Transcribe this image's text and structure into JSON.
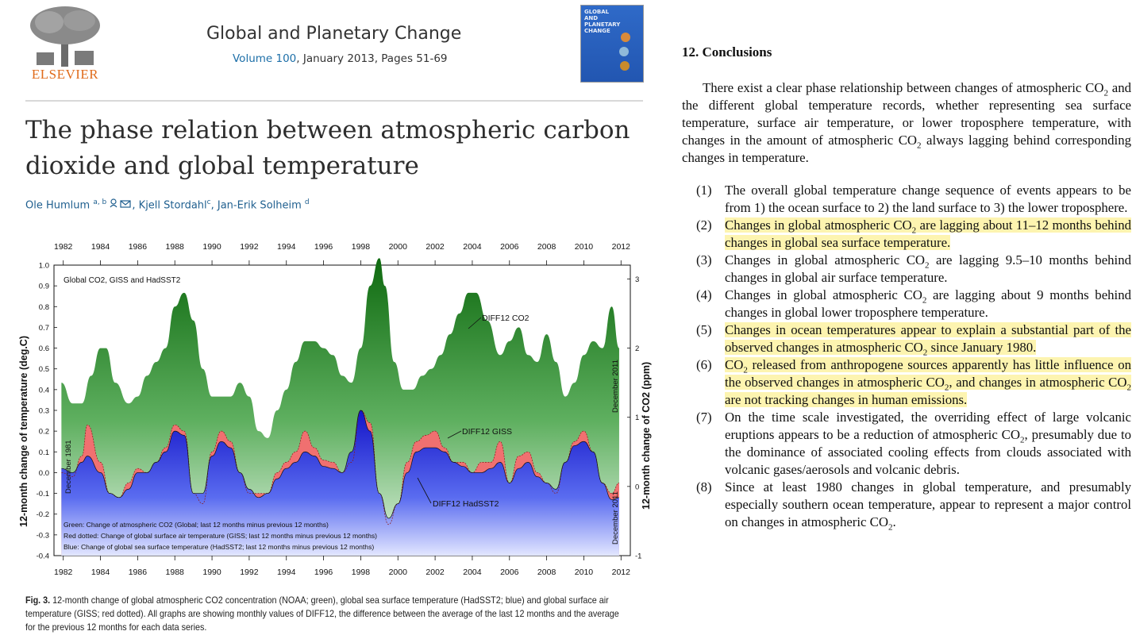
{
  "header": {
    "publisher": "ELSEVIER",
    "journal_name": "Global and Planetary Change",
    "volume_label": "Volume 100",
    "issue_rest": ", January 2013, Pages 51-69",
    "cover_text": "GLOBAL AND PLANETARY CHANGE"
  },
  "article": {
    "title": "The phase relation between atmospheric carbon dioxide and global temperature",
    "authors": [
      {
        "name": "Ole Humlum",
        "sup": "a, b"
      },
      {
        "name": "Kjell Stordahl",
        "sup": "c"
      },
      {
        "name": "Jan-Erik Solheim",
        "sup": "d"
      }
    ]
  },
  "chart_data": {
    "type": "area",
    "title": "Global CO2, GISS and HadSST2",
    "ylabel_left": "12-month change of temperature (deg.C)",
    "ylabel_right": "12-month change of CO2 (ppm)",
    "x_ticks": [
      "1982",
      "1984",
      "1986",
      "1988",
      "1990",
      "1992",
      "1994",
      "1996",
      "1998",
      "2000",
      "2002",
      "2004",
      "2006",
      "2008",
      "2010",
      "2012"
    ],
    "xlim": [
      1981.5,
      2012.5
    ],
    "ylim_left": [
      -0.4,
      1.0
    ],
    "ylim_right": [
      -1,
      3.2
    ],
    "yticks_left": [
      "1.0",
      "0.9",
      "0.8",
      "0.7",
      "0.6",
      "0.5",
      "0.4",
      "0.3",
      "0.2",
      "0.1",
      "0.0",
      "-0.1",
      "-0.2",
      "-0.3",
      "-0.4"
    ],
    "yticks_right": [
      "3",
      "2",
      "1",
      "0",
      "-1"
    ],
    "start_label": "December 1981",
    "end_label_top": "December 2011",
    "end_label_bottom": "December 2011",
    "labels": {
      "co2": "DIFF12 CO2",
      "giss": "DIFF12 GISS",
      "hadsst": "DIFF12 HadSST2"
    },
    "legend": [
      "Green: Change of atmospheric CO2 (Global; last 12 months minus previous 12 months)",
      "Red dotted: Change of global surface air temperature (GISS; last 12 months minus previous 12 months)",
      "Blue: Change of global sea surface temperature (HadSST2; last 12 months minus previous 12 months)"
    ],
    "series": [
      {
        "name": "CO2 (ppm, right axis)",
        "x": [
          1981.9,
          1982.5,
          1983.0,
          1983.5,
          1984.0,
          1984.3,
          1984.8,
          1985.5,
          1986.0,
          1986.5,
          1987.0,
          1987.5,
          1988.0,
          1988.5,
          1989.0,
          1989.5,
          1990.0,
          1990.5,
          1991.0,
          1991.5,
          1992.0,
          1992.5,
          1993.0,
          1993.5,
          1994.0,
          1994.5,
          1995.0,
          1995.5,
          1996.0,
          1996.5,
          1997.0,
          1997.5,
          1998.0,
          1998.5,
          1999.0,
          1999.3,
          1999.8,
          2000.3,
          2000.8,
          2001.3,
          2001.8,
          2002.3,
          2002.8,
          2003.3,
          2003.8,
          2004.2,
          2004.8,
          2005.5,
          2006.0,
          2006.5,
          2007.0,
          2007.5,
          2008.0,
          2008.5,
          2009.0,
          2009.5,
          2010.0,
          2010.5,
          2011.0,
          2011.5,
          2011.9
        ],
        "values": [
          1.5,
          1.2,
          1.2,
          1.6,
          2.0,
          2.0,
          1.5,
          1.2,
          1.3,
          1.6,
          1.8,
          2.0,
          2.6,
          2.8,
          2.4,
          1.7,
          1.3,
          1.3,
          1.3,
          1.5,
          1.3,
          0.8,
          0.7,
          1.1,
          1.4,
          1.8,
          2.1,
          2.1,
          2.0,
          1.9,
          1.6,
          1.5,
          2.0,
          2.9,
          3.3,
          2.9,
          1.8,
          1.4,
          1.4,
          1.6,
          1.7,
          1.9,
          2.2,
          2.5,
          2.8,
          2.8,
          2.4,
          1.9,
          2.1,
          2.3,
          1.9,
          1.8,
          2.2,
          1.8,
          1.3,
          1.5,
          1.9,
          2.1,
          2.0,
          2.6,
          2.0
        ]
      },
      {
        "name": "GISS (deg C)",
        "x": [
          1981.9,
          1982.5,
          1983.0,
          1983.3,
          1984.0,
          1984.5,
          1985.0,
          1985.5,
          1986.0,
          1986.5,
          1987.0,
          1987.5,
          1988.0,
          1988.5,
          1989.0,
          1989.5,
          1990.0,
          1990.5,
          1991.0,
          1991.5,
          1992.0,
          1992.5,
          1993.0,
          1993.5,
          1994.0,
          1994.5,
          1995.0,
          1995.5,
          1996.0,
          1996.5,
          1997.0,
          1997.5,
          1998.0,
          1998.5,
          1999.0,
          1999.5,
          2000.0,
          2000.5,
          2001.0,
          2001.5,
          2002.0,
          2002.5,
          2003.0,
          2003.5,
          2004.0,
          2004.5,
          2005.0,
          2005.5,
          2006.0,
          2006.5,
          2007.0,
          2007.5,
          2008.0,
          2008.5,
          2009.0,
          2009.5,
          2010.0,
          2010.5,
          2011.0,
          2011.5,
          2011.9
        ],
        "values": [
          0.0,
          -0.02,
          0.08,
          0.23,
          0.05,
          -0.1,
          -0.12,
          -0.05,
          0.02,
          0.0,
          0.05,
          0.12,
          0.23,
          0.2,
          -0.1,
          -0.15,
          0.1,
          0.2,
          0.15,
          0.0,
          -0.1,
          -0.1,
          -0.1,
          0.0,
          0.05,
          0.1,
          0.2,
          0.12,
          0.06,
          0.05,
          0.0,
          0.05,
          0.3,
          0.24,
          -0.1,
          -0.25,
          -0.15,
          0.05,
          0.15,
          0.18,
          0.2,
          0.12,
          0.05,
          0.05,
          0.0,
          0.05,
          0.05,
          0.15,
          -0.05,
          0.08,
          0.1,
          0.0,
          -0.05,
          -0.1,
          0.05,
          0.15,
          0.2,
          0.1,
          -0.05,
          -0.1,
          -0.05
        ]
      },
      {
        "name": "HadSST2 (deg C)",
        "x": [
          1981.9,
          1982.5,
          1983.0,
          1983.3,
          1984.0,
          1984.5,
          1985.0,
          1985.5,
          1986.0,
          1986.5,
          1987.0,
          1987.5,
          1988.0,
          1988.5,
          1989.0,
          1989.5,
          1990.0,
          1990.5,
          1991.0,
          1991.5,
          1992.0,
          1992.5,
          1993.0,
          1993.5,
          1994.0,
          1994.5,
          1995.0,
          1995.5,
          1996.0,
          1996.5,
          1997.0,
          1997.5,
          1998.0,
          1998.5,
          1999.0,
          1999.5,
          2000.0,
          2000.5,
          2001.0,
          2001.5,
          2002.0,
          2002.5,
          2003.0,
          2003.5,
          2004.0,
          2004.5,
          2005.0,
          2005.5,
          2006.0,
          2006.5,
          2007.0,
          2007.5,
          2008.0,
          2008.5,
          2009.0,
          2009.5,
          2010.0,
          2010.5,
          2011.0,
          2011.5,
          2011.9
        ],
        "values": [
          0.02,
          0.0,
          0.05,
          0.08,
          0.0,
          -0.1,
          -0.12,
          -0.08,
          0.0,
          0.0,
          0.05,
          0.1,
          0.2,
          0.18,
          -0.1,
          -0.1,
          0.08,
          0.15,
          0.12,
          0.0,
          -0.08,
          -0.12,
          -0.1,
          -0.03,
          0.02,
          0.05,
          0.1,
          0.08,
          0.03,
          0.02,
          0.0,
          0.1,
          0.3,
          0.2,
          -0.1,
          -0.22,
          -0.15,
          0.0,
          0.1,
          0.12,
          0.12,
          0.1,
          0.05,
          0.03,
          0.0,
          0.0,
          0.02,
          0.05,
          -0.05,
          0.02,
          0.05,
          -0.02,
          -0.05,
          -0.08,
          0.05,
          0.13,
          0.15,
          0.1,
          -0.05,
          -0.13,
          -0.12
        ]
      }
    ]
  },
  "caption": {
    "lead": "Fig. 3.",
    "text": " 12-month change of global atmospheric CO2 concentration (NOAA; green), global sea surface temperature (HadSST2; blue) and global surface air temperature (GISS; red dotted). All graphs are showing monthly values of DIFF12, the difference between the average of the last 12 months and the average for the previous 12 months for each data series."
  },
  "conclusions": {
    "heading": "12. Conclusions",
    "intro_a": "There exist a clear phase relationship between changes of atmospheric CO",
    "intro_b": " and the different global temperature records, whether representing sea surface temperature, surface air temperature, or lower troposphere temperature, with changes in the amount of atmospheric CO",
    "intro_c": " always lagging behind corresponding changes in temperature.",
    "sub2": "2",
    "items": [
      {
        "num": "(1)",
        "highlight": false,
        "parts": [
          "The overall global temperature change sequence of events appears to be from 1) the ocean surface to 2) the land surface to 3) the lower troposphere."
        ]
      },
      {
        "num": "(2)",
        "highlight": true,
        "parts": [
          "Changes in global atmospheric CO",
          " are lagging about 11–12 months behind changes in global sea surface temperature."
        ]
      },
      {
        "num": "(3)",
        "highlight": false,
        "parts": [
          "Changes in global atmospheric CO",
          " are lagging 9.5–10 months behind changes in global air surface temperature."
        ]
      },
      {
        "num": "(4)",
        "highlight": false,
        "parts": [
          "Changes in global atmospheric CO",
          " are lagging about 9 months behind changes in global lower troposphere temperature."
        ]
      },
      {
        "num": "(5)",
        "highlight": true,
        "parts": [
          "Changes in ocean temperatures appear to explain a substantial part of the observed changes in atmospheric CO",
          " since January 1980."
        ]
      },
      {
        "num": "(6)",
        "highlight": true,
        "parts": [
          "CO",
          " released from anthropogene sources apparently has little influence on the observed changes in atmospheric CO",
          ", and changes in atmospheric CO",
          " are not tracking changes in human emissions."
        ]
      },
      {
        "num": "(7)",
        "highlight": false,
        "parts": [
          "On the time scale investigated, the overriding effect of large volcanic eruptions appears to be a reduction of atmospheric CO",
          ", presumably due to the dominance of associated cooling effects from clouds associated with volcanic gases/aerosols and volcanic debris."
        ]
      },
      {
        "num": "(8)",
        "highlight": false,
        "parts": [
          "Since at least 1980 changes in global temperature, and presumably especially southern ocean temperature, appear to represent a major control on changes in atmospheric CO",
          "."
        ]
      }
    ]
  }
}
